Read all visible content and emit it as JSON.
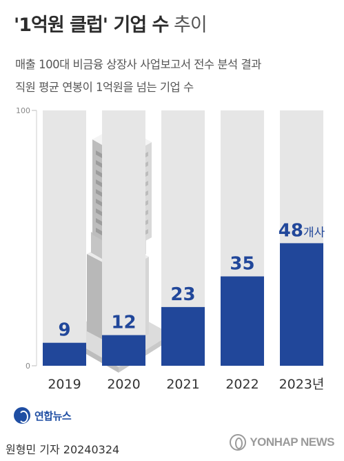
{
  "header": {
    "title_main": "'1억원 클럽' 기업 수",
    "title_light": " 추이",
    "subtitle_line1": "매출 100대 비금융 상장사 사업보고서 전수 분석 결과",
    "subtitle_line2": "직원 평균 연봉이 1억원을 넘는 기업 수"
  },
  "chart_data": {
    "type": "bar",
    "categories": [
      "2019",
      "2020",
      "2021",
      "2022",
      "2023년"
    ],
    "values": [
      9,
      12,
      23,
      35,
      48
    ],
    "value_labels": [
      "9",
      "12",
      "23",
      "35",
      "48"
    ],
    "last_value_unit": "개사",
    "ylim": [
      0,
      100
    ],
    "y_ticks": [
      "0",
      "100"
    ],
    "bar_color": "#21479a",
    "track_color": "#e6e6e6",
    "grid": false
  },
  "footer": {
    "logo_text": "연합뉴스",
    "byline": "원형민 기자  20240324",
    "agency": "YONHAP NEWS"
  },
  "colors": {
    "accent": "#21479a",
    "title": "#2c2c2c"
  }
}
